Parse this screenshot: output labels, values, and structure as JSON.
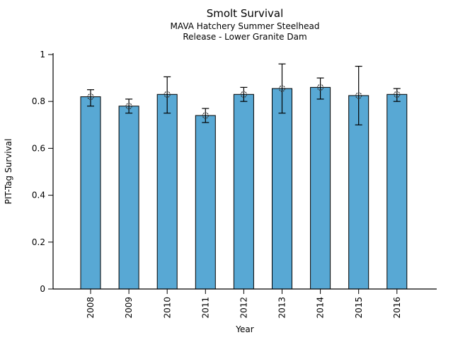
{
  "window": {
    "background": "#ffffff"
  },
  "chart_data": {
    "type": "bar",
    "title": "Smolt Survival",
    "subtitle": [
      "MAVA Hatchery Summer Steelhead",
      "Release - Lower Granite Dam"
    ],
    "xlabel": "Year",
    "ylabel": "PIT-Tag Survival",
    "categories": [
      "2008",
      "2009",
      "2010",
      "2011",
      "2012",
      "2013",
      "2014",
      "2015",
      "2016"
    ],
    "values": [
      0.82,
      0.78,
      0.83,
      0.74,
      0.83,
      0.855,
      0.86,
      0.825,
      0.83
    ],
    "error_low": [
      0.78,
      0.75,
      0.75,
      0.71,
      0.8,
      0.75,
      0.81,
      0.7,
      0.8
    ],
    "error_high": [
      0.85,
      0.81,
      0.905,
      0.77,
      0.86,
      0.96,
      0.9,
      0.95,
      0.855
    ],
    "ylim": [
      0,
      1
    ],
    "yticks": [
      0,
      0.2,
      0.4,
      0.6,
      0.8,
      1
    ],
    "ytick_labels": [
      "0",
      "0.2",
      "0.4",
      "0.6",
      "0.8",
      "1"
    ],
    "x_tick_rotation": 90,
    "grid": false,
    "legend": null,
    "bar_color": "#58A8D4",
    "bar_edge_color": "#000000",
    "error_color": "#000000",
    "marker": "open-circle",
    "marker_color": "#333333",
    "axis_color": "#000000"
  }
}
